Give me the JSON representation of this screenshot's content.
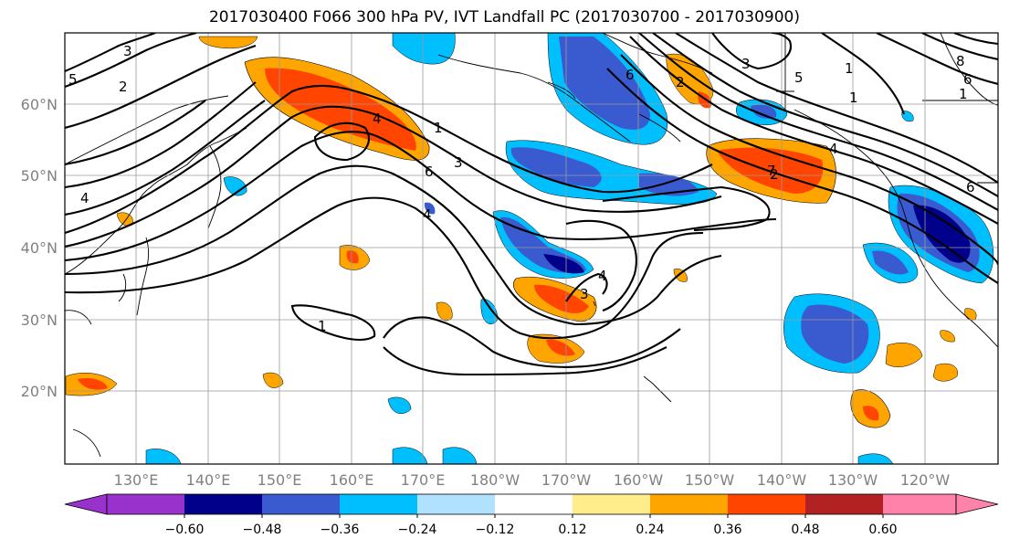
{
  "title": "2017030400 F066 300 hPa PV, IVT Landfall PC (2017030700 - 2017030900)",
  "lat_labels": [
    "60°N",
    "50°N",
    "40°N",
    "30°N",
    "20°N"
  ],
  "lon_labels": [
    "130°E",
    "140°E",
    "150°E",
    "160°E",
    "170°E",
    "180°W",
    "170°W",
    "160°W",
    "150°W",
    "140°W",
    "130°W",
    "120°W"
  ],
  "colorbar": {
    "tick_labels": [
      "−0.60",
      "−0.48",
      "−0.36",
      "−0.24",
      "−0.12",
      "0.12",
      "0.24",
      "0.36",
      "0.48",
      "0.60"
    ],
    "colors": [
      "#9932cc",
      "#00008b",
      "#3a5bd0",
      "#00bfff",
      "#b0e2ff",
      "#ffffff",
      "#ffec8b",
      "#ffa500",
      "#ff4500",
      "#b22222",
      "#ff82ab"
    ]
  },
  "contour_labels": [
    "4",
    "3",
    "2",
    "5",
    "1",
    "6",
    "4",
    "3",
    "1",
    "7",
    "2",
    "4",
    "1",
    "8",
    "5",
    "6",
    "1",
    "3",
    "2",
    "6",
    "4",
    "3",
    "6",
    "1",
    "4"
  ]
}
